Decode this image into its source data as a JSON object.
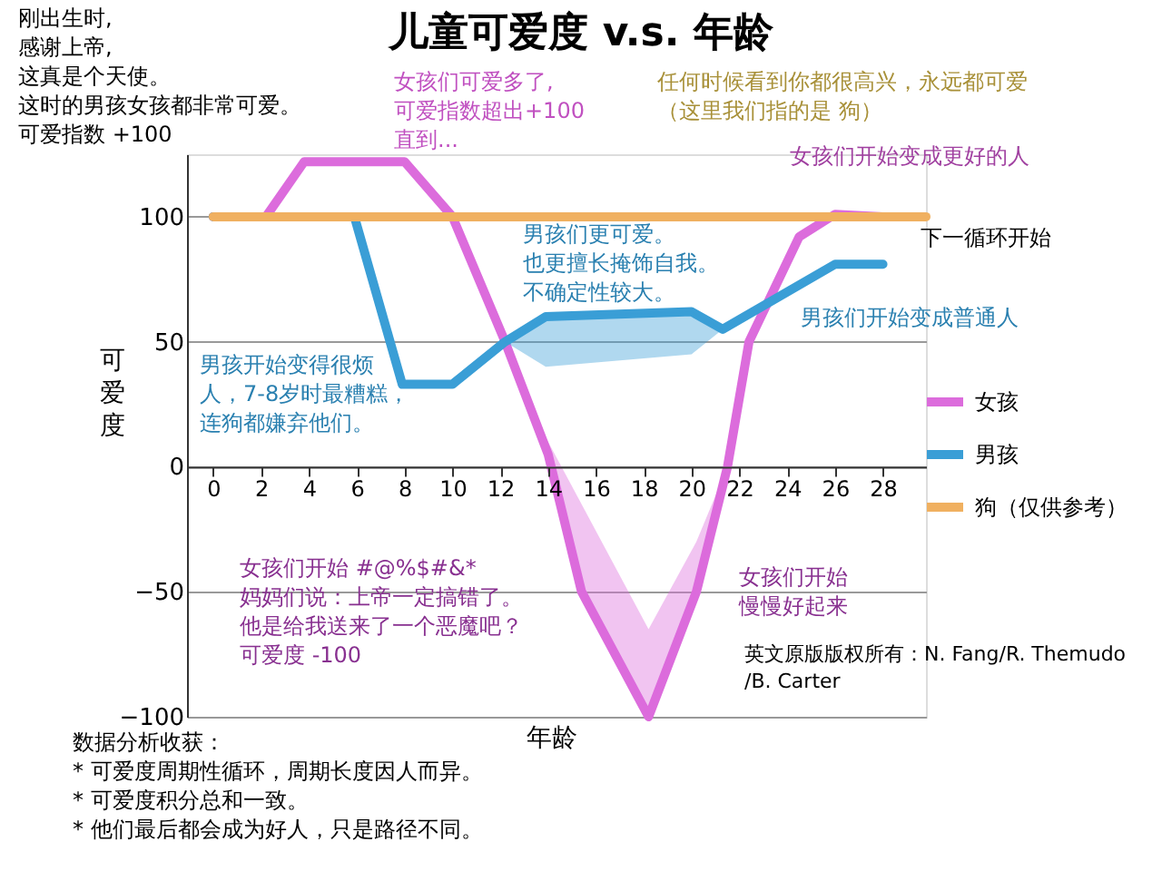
{
  "chart_data": {
    "type": "line",
    "title": "儿童可爱度 v.s. 年龄",
    "xlabel": "年龄",
    "ylabel": "可爱度",
    "xlim": [
      -1.1,
      29.8
    ],
    "xticks": [
      0,
      2,
      4,
      6,
      8,
      10,
      12,
      14,
      16,
      18,
      20,
      22,
      24,
      26,
      28
    ],
    "ylim": [
      -100,
      125
    ],
    "yticks": [
      -100,
      -50,
      0,
      50,
      100
    ],
    "grid": "y",
    "legend": "right",
    "series": [
      {
        "name": "女孩",
        "color": "#dc6cdc",
        "x": [
          0,
          2.2,
          3.8,
          8,
          10,
          12.2,
          14,
          15.4,
          18.2,
          20.2,
          21.5,
          22.4,
          24.5,
          26,
          28
        ],
        "values": [
          100,
          100,
          122,
          122,
          100,
          50,
          5,
          -50,
          -100,
          -50,
          0,
          50,
          92,
          101,
          100
        ],
        "lower": [
          null,
          null,
          null,
          null,
          null,
          50,
          5,
          -50,
          -100,
          -50,
          0,
          50,
          null,
          null,
          null
        ],
        "upper": [
          null,
          null,
          null,
          null,
          null,
          50,
          10,
          -15,
          -65,
          -30,
          0,
          50,
          null,
          null,
          null
        ]
      },
      {
        "name": "男孩",
        "color": "#3a9ed6",
        "x": [
          0,
          5.9,
          7.9,
          10,
          12.2,
          13.9,
          20,
          21.3,
          26,
          28
        ],
        "values": [
          100,
          100,
          33,
          33,
          50,
          60,
          62,
          55,
          81,
          81
        ],
        "lower": [
          null,
          null,
          null,
          null,
          50,
          40,
          45,
          55,
          null,
          null
        ],
        "upper": [
          null,
          null,
          null,
          null,
          50,
          60,
          62,
          55,
          null,
          null
        ]
      },
      {
        "name": "狗（仅供参考）",
        "color": "#f0b060",
        "x": [
          0,
          29.8
        ],
        "values": [
          100,
          100
        ]
      }
    ],
    "annotations": [
      "刚出生时,感谢上帝,这真是个天使。这时的男孩女孩都非常可爱。可爱指数 +100",
      "女孩们可爱多了,可爱指数超出+100直到...",
      "任何时候看到你都很高兴，永远都可爱（这里我们指的是 狗）",
      "女孩们开始变成更好的人",
      "男孩们更可爱。也更擅长掩饰自我。不确定性较大。",
      "下一循环开始",
      "男孩们开始变成普通人",
      "男孩开始变得很烦人，7-8岁时最糟糕，连狗都嫌弃他们。",
      "女孩们开始 #@%$#&*妈妈们说：上帝一定搞错了。他是给我送来了一个恶魔吧？可爱度 -100",
      "女孩们开始慢慢好起来",
      "英文原版版权所有：N. Fang/R. Themudo/B. Carter",
      "数据分析收获：* 可爱度周期性循环，周期长度因人而异。* 可爱度积分总和一致。* 他们最后都会成为好人，只是路径不同。"
    ]
  }
}
